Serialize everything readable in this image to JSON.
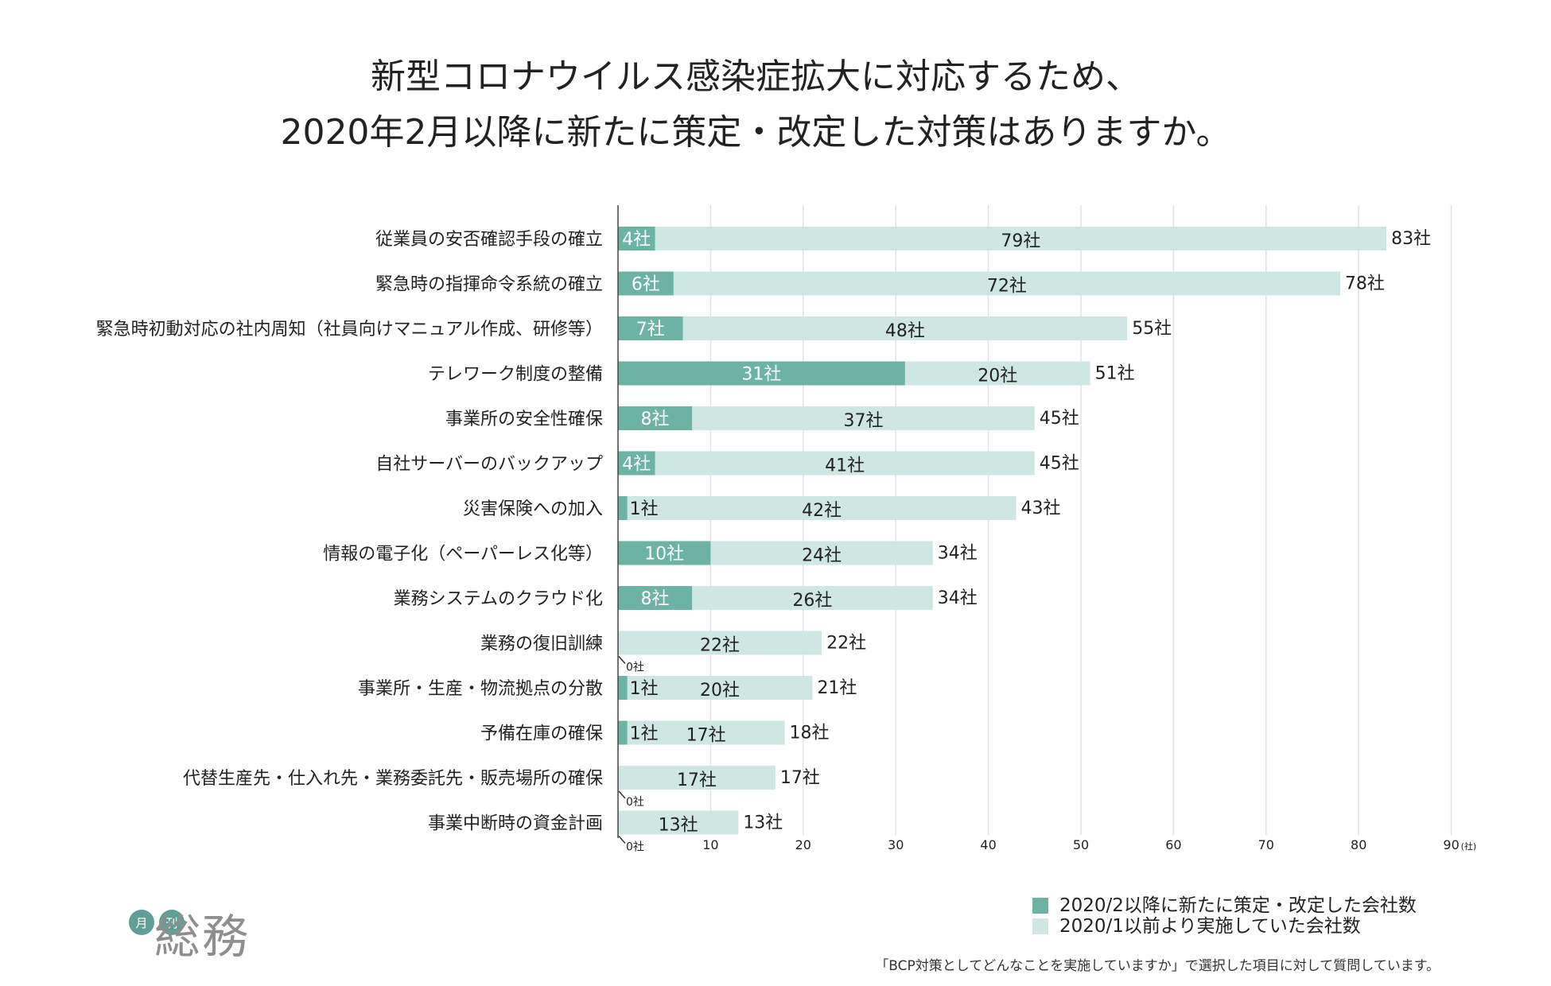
{
  "colors": {
    "new": "#6cb2a5",
    "old": "#cfe7e2",
    "grid": "#e3e3e3",
    "axis": "#444444",
    "text": "#222222"
  },
  "title_lines": [
    "新型コロナウイルス感染症拡大に対応するため、",
    "2020年2月以降に新たに策定・改定した対策はありますか。"
  ],
  "chart_data": {
    "type": "bar",
    "orientation": "horizontal",
    "stacked": true,
    "categories": [
      "従業員の安否確認手段の確立",
      "緊急時の指揮命令系統の確立",
      "緊急時初動対応の社内周知（社員向けマニュアル作成、研修等）",
      "テレワーク制度の整備",
      "事業所の安全性確保",
      "自社サーバーのバックアップ",
      "災害保険への加入",
      "情報の電子化（ペーパーレス化等）",
      "業務システムのクラウド化",
      "業務の復旧訓練",
      "事業所・生産・物流拠点の分散",
      "予備在庫の確保",
      "代替生産先・仕入れ先・業務委託先・販売場所の確保",
      "事業中断時の資金計画"
    ],
    "series": [
      {
        "name": "2020/2以降に新たに策定・改定した会社数",
        "values": [
          4,
          6,
          7,
          31,
          8,
          4,
          1,
          10,
          8,
          0,
          1,
          1,
          0,
          0
        ]
      },
      {
        "name": "2020/1以前より実施していた会社数",
        "values": [
          79,
          72,
          48,
          20,
          37,
          41,
          42,
          24,
          26,
          22,
          20,
          17,
          17,
          13
        ]
      }
    ],
    "totals": [
      83,
      78,
      55,
      51,
      45,
      45,
      43,
      34,
      34,
      22,
      21,
      18,
      17,
      13
    ],
    "unit_suffix": "社",
    "xlim": [
      0,
      90
    ],
    "xticks": [
      10,
      20,
      30,
      40,
      50,
      60,
      70,
      80,
      90
    ],
    "x_unit_label": "(社)",
    "grid": true,
    "legend_position": "bottom-right"
  },
  "note": "「BCP対策としてどんなことを実施していますか」で選択した項目に対して質問しています。",
  "logo": {
    "badge1": "月",
    "badge2": "刊",
    "text": "総務"
  }
}
